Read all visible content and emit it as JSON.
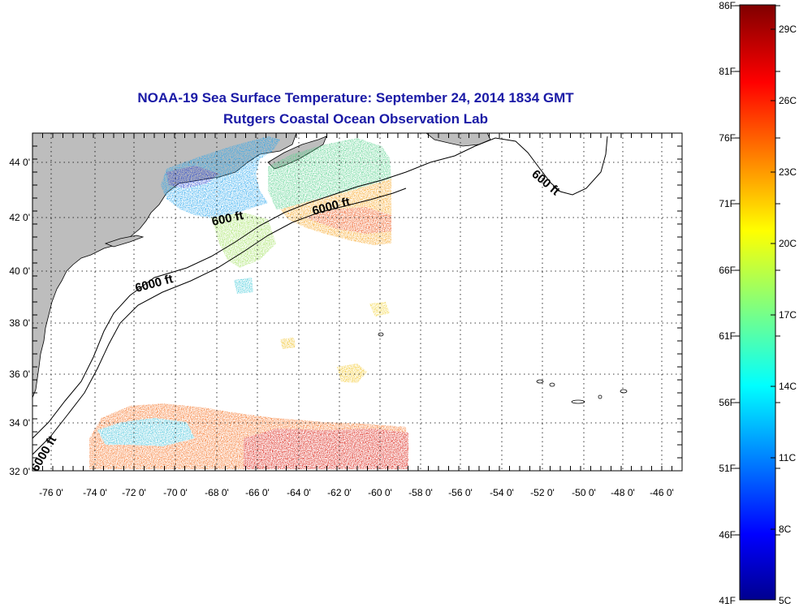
{
  "title": {
    "line1": "NOAA-19 Sea Surface Temperature:  September 24, 2014 1834 GMT",
    "line2": "Rutgers Coastal Ocean Observation Lab"
  },
  "axes": {
    "lon_labels": [
      "-76 0'",
      "-74 0'",
      "-72 0'",
      "-70 0'",
      "-68 0'",
      "-66 0'",
      "-64 0'",
      "-62 0'",
      "-60 0'",
      "-58 0'",
      "-56 0'",
      "-54 0'",
      "-52 0'",
      "-50 0'",
      "-48 0'",
      "-46 0'"
    ],
    "lat_labels": [
      "44 0'",
      "42 0'",
      "40 0'",
      "38 0'",
      "36 0'",
      "34 0'",
      "32 0'"
    ],
    "lon_range": [
      -77,
      -45
    ],
    "lat_range": [
      32,
      45
    ],
    "grid": true
  },
  "colorbar": {
    "fahrenheit_labels": [
      "86F",
      "81F",
      "76F",
      "71F",
      "66F",
      "61F",
      "56F",
      "51F",
      "46F",
      "41F"
    ],
    "celsius_labels": [
      "29C",
      "26C",
      "23C",
      "20C",
      "17C",
      "14C",
      "11C",
      "8C",
      "5C"
    ],
    "colormap": "jet",
    "range_c": [
      5,
      30
    ]
  },
  "contours": {
    "labels": [
      "600 ft",
      "6000 ft",
      "6000 ft",
      "600 ft",
      "6000 ft"
    ]
  },
  "colors": {
    "land": "#bdbdbd",
    "title": "#1a1aa6",
    "ocean_nodata": "#ffffff"
  }
}
